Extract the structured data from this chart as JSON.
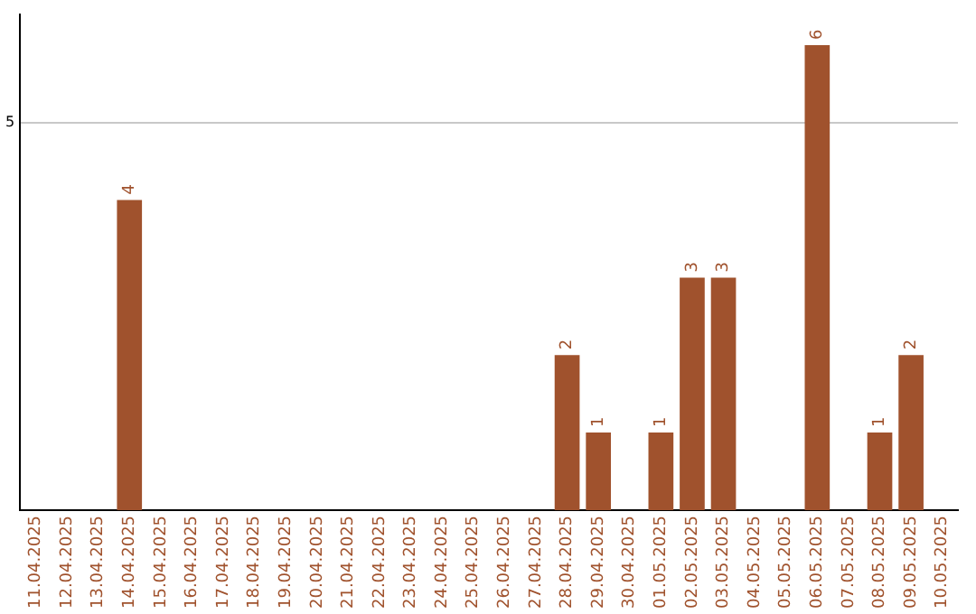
{
  "chart_data": {
    "type": "bar",
    "categories": [
      "11.04.2025",
      "12.04.2025",
      "13.04.2025",
      "14.04.2025",
      "15.04.2025",
      "16.04.2025",
      "17.04.2025",
      "18.04.2025",
      "19.04.2025",
      "20.04.2025",
      "21.04.2025",
      "22.04.2025",
      "23.04.2025",
      "24.04.2025",
      "25.04.2025",
      "26.04.2025",
      "27.04.2025",
      "28.04.2025",
      "29.04.2025",
      "30.04.2025",
      "01.05.2025",
      "02.05.2025",
      "03.05.2025",
      "04.05.2025",
      "05.05.2025",
      "06.05.2025",
      "07.05.2025",
      "08.05.2025",
      "09.05.2025",
      "10.05.2025"
    ],
    "values": [
      0,
      0,
      0,
      4,
      0,
      0,
      0,
      0,
      0,
      0,
      0,
      0,
      0,
      0,
      0,
      0,
      0,
      2,
      1,
      0,
      1,
      3,
      3,
      0,
      0,
      6,
      0,
      1,
      2,
      0
    ],
    "value_labels": [
      null,
      null,
      null,
      "4",
      null,
      null,
      null,
      null,
      null,
      null,
      null,
      null,
      null,
      null,
      null,
      null,
      null,
      "2",
      "1",
      null,
      "1",
      "3",
      "3",
      null,
      null,
      "6",
      null,
      "1",
      "2",
      null
    ],
    "color": "#a0522d",
    "ylim": [
      0,
      6.4
    ],
    "yticks": [
      5
    ],
    "grid": "y",
    "legend": false
  }
}
